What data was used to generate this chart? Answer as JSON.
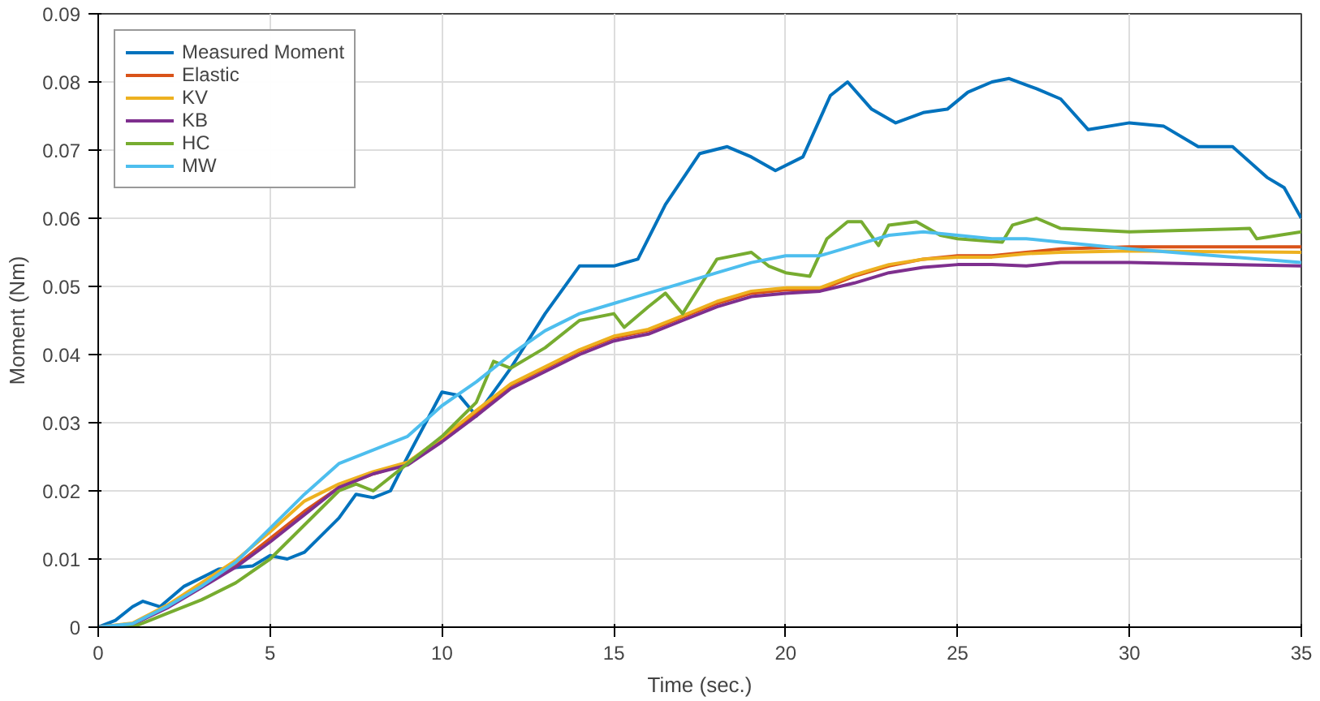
{
  "chart_data": {
    "type": "line",
    "xlabel": "Time (sec.)",
    "ylabel": "Moment (Nm)",
    "xlim": [
      0,
      35
    ],
    "ylim": [
      0,
      0.09
    ],
    "xticks": [
      0,
      5,
      10,
      15,
      20,
      25,
      30,
      35
    ],
    "yticks": [
      0,
      0.01,
      0.02,
      0.03,
      0.04,
      0.05,
      0.06,
      0.07,
      0.08,
      0.09
    ],
    "grid": true,
    "legend": "top left",
    "line_style": "solid",
    "marker": "none",
    "series": [
      {
        "name": "Measured Moment",
        "color": "#0072bd",
        "x": [
          0,
          0.5,
          1,
          1.3,
          1.8,
          2.5,
          3.5,
          4.5,
          5,
          5.5,
          6,
          7,
          7.5,
          8,
          8.5,
          9,
          10,
          10.5,
          11,
          12,
          13,
          14,
          15,
          15.7,
          16.5,
          17.5,
          18.3,
          19,
          19.7,
          20.5,
          21.3,
          21.8,
          22.5,
          23.2,
          24,
          24.7,
          25.3,
          26,
          26.5,
          27.3,
          28,
          28.8,
          30,
          31,
          32,
          33,
          34,
          34.5,
          35
        ],
        "values": [
          0,
          0.001,
          0.003,
          0.0038,
          0.003,
          0.006,
          0.0085,
          0.009,
          0.0105,
          0.01,
          0.011,
          0.016,
          0.0195,
          0.019,
          0.02,
          0.025,
          0.0345,
          0.034,
          0.031,
          0.038,
          0.046,
          0.053,
          0.053,
          0.054,
          0.062,
          0.0695,
          0.0705,
          0.069,
          0.067,
          0.069,
          0.078,
          0.08,
          0.076,
          0.074,
          0.0755,
          0.076,
          0.0785,
          0.08,
          0.0805,
          0.079,
          0.0775,
          0.073,
          0.074,
          0.0735,
          0.0705,
          0.0705,
          0.066,
          0.0645,
          0.06
        ]
      },
      {
        "name": "Elastic",
        "color": "#d95319",
        "x": [
          0,
          1,
          2,
          3,
          4,
          5,
          6,
          7,
          8,
          9,
          10,
          11,
          12,
          13,
          14,
          15,
          16,
          17,
          18,
          19,
          20,
          21,
          22,
          23,
          24,
          25,
          26,
          27,
          28,
          30,
          35
        ],
        "values": [
          0,
          0.0005,
          0.003,
          0.006,
          0.009,
          0.013,
          0.017,
          0.0205,
          0.0225,
          0.024,
          0.0275,
          0.0315,
          0.0355,
          0.038,
          0.0405,
          0.0425,
          0.0435,
          0.0455,
          0.0475,
          0.049,
          0.0495,
          0.0495,
          0.0515,
          0.053,
          0.054,
          0.0545,
          0.0545,
          0.055,
          0.0555,
          0.0558,
          0.0558
        ]
      },
      {
        "name": "KV",
        "color": "#edb120",
        "x": [
          0,
          1,
          2,
          3,
          4,
          5,
          6,
          7,
          8,
          9,
          10,
          11,
          12,
          13,
          14,
          15,
          16,
          17,
          18,
          19,
          20,
          21,
          22,
          23,
          24,
          25,
          26,
          27,
          28,
          30,
          35
        ],
        "values": [
          0,
          0.0006,
          0.0032,
          0.0065,
          0.0098,
          0.014,
          0.0185,
          0.021,
          0.0228,
          0.0242,
          0.0278,
          0.0318,
          0.0357,
          0.0382,
          0.0407,
          0.0427,
          0.0437,
          0.0457,
          0.0478,
          0.0493,
          0.0498,
          0.0498,
          0.0517,
          0.0532,
          0.054,
          0.0543,
          0.0543,
          0.0548,
          0.055,
          0.0552,
          0.055
        ]
      },
      {
        "name": "KB",
        "color": "#7e2f8e",
        "x": [
          0,
          1,
          2,
          3,
          4,
          5,
          6,
          7,
          8,
          9,
          10,
          11,
          12,
          13,
          14,
          15,
          16,
          17,
          18,
          19,
          20,
          21,
          22,
          23,
          24,
          25,
          26,
          27,
          28,
          30,
          35
        ],
        "values": [
          0,
          0.0004,
          0.0028,
          0.0058,
          0.0088,
          0.0125,
          0.0165,
          0.0205,
          0.0225,
          0.0238,
          0.0272,
          0.031,
          0.035,
          0.0375,
          0.04,
          0.042,
          0.043,
          0.045,
          0.047,
          0.0485,
          0.049,
          0.0493,
          0.0505,
          0.052,
          0.0528,
          0.0532,
          0.0532,
          0.053,
          0.0535,
          0.0535,
          0.053
        ]
      },
      {
        "name": "HC",
        "color": "#77ac30",
        "x": [
          0,
          1,
          2,
          3,
          4,
          5,
          6,
          7,
          7.5,
          8,
          9,
          10,
          11,
          11.5,
          12,
          13,
          14,
          15,
          15.3,
          16,
          16.5,
          17,
          17.5,
          18,
          19,
          19.5,
          20,
          20.7,
          21.2,
          21.8,
          22.2,
          22.7,
          23,
          23.8,
          24.5,
          25,
          26.3,
          26.6,
          27.3,
          28,
          30,
          33.5,
          33.7,
          35
        ],
        "values": [
          0,
          0,
          0.002,
          0.004,
          0.0065,
          0.01,
          0.015,
          0.02,
          0.021,
          0.02,
          0.024,
          0.028,
          0.033,
          0.039,
          0.038,
          0.041,
          0.045,
          0.046,
          0.044,
          0.047,
          0.049,
          0.046,
          0.05,
          0.054,
          0.055,
          0.053,
          0.052,
          0.0515,
          0.057,
          0.0595,
          0.0595,
          0.056,
          0.059,
          0.0595,
          0.0575,
          0.057,
          0.0565,
          0.059,
          0.06,
          0.0585,
          0.058,
          0.0585,
          0.057,
          0.058
        ]
      },
      {
        "name": "MW",
        "color": "#4dbeee",
        "x": [
          0,
          1,
          2,
          3,
          4,
          5,
          6,
          7,
          8,
          9,
          10,
          11,
          12,
          13,
          14,
          15,
          16,
          17,
          18,
          19,
          20,
          21,
          22,
          23,
          24,
          25,
          26,
          27,
          28,
          30,
          35
        ],
        "values": [
          0,
          0.0005,
          0.003,
          0.006,
          0.0095,
          0.0145,
          0.0195,
          0.024,
          0.026,
          0.028,
          0.0325,
          0.036,
          0.04,
          0.0435,
          0.046,
          0.0475,
          0.049,
          0.0505,
          0.052,
          0.0535,
          0.0545,
          0.0545,
          0.056,
          0.0575,
          0.058,
          0.0575,
          0.057,
          0.057,
          0.0565,
          0.0555,
          0.0535
        ]
      }
    ]
  }
}
